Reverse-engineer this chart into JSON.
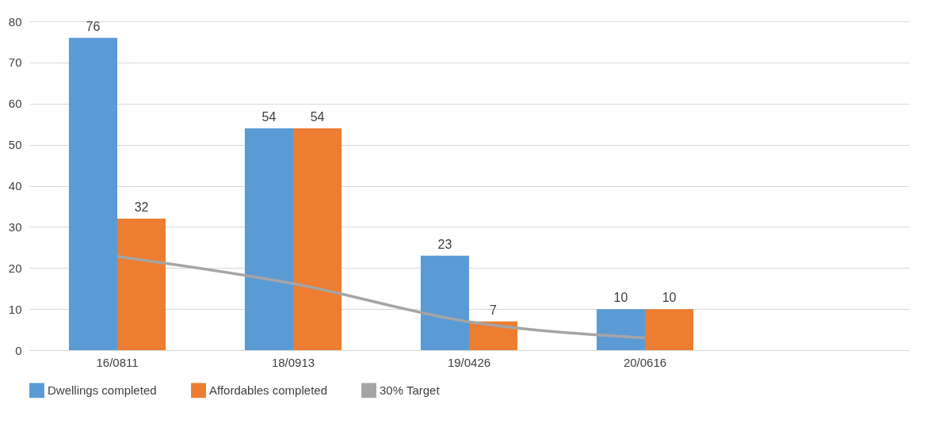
{
  "chart_data": {
    "type": "bar",
    "categories": [
      "16/0811",
      "18/0913",
      "19/0426",
      "20/0616",
      null
    ],
    "series": [
      {
        "name": "Dwellings completed",
        "color": "#5b9bd5",
        "values": [
          76,
          54,
          23,
          10,
          null
        ],
        "value_labels": [
          "76",
          "54",
          "23",
          "10",
          null
        ]
      },
      {
        "name": "Affordables completed",
        "color": "#ed7d31",
        "values": [
          32,
          54,
          7,
          10,
          null
        ],
        "value_labels": [
          "32",
          "54",
          "7",
          "10",
          null
        ]
      },
      {
        "name": "30% Target",
        "type": "line",
        "color": "#a5a5a5",
        "values": [
          22.8,
          16.2,
          6.9,
          3,
          null
        ]
      }
    ],
    "ylim": [
      0,
      80
    ],
    "yticks": [
      0,
      10,
      20,
      30,
      40,
      50,
      60,
      70,
      80
    ],
    "grid": "y",
    "legend": "bottom"
  }
}
